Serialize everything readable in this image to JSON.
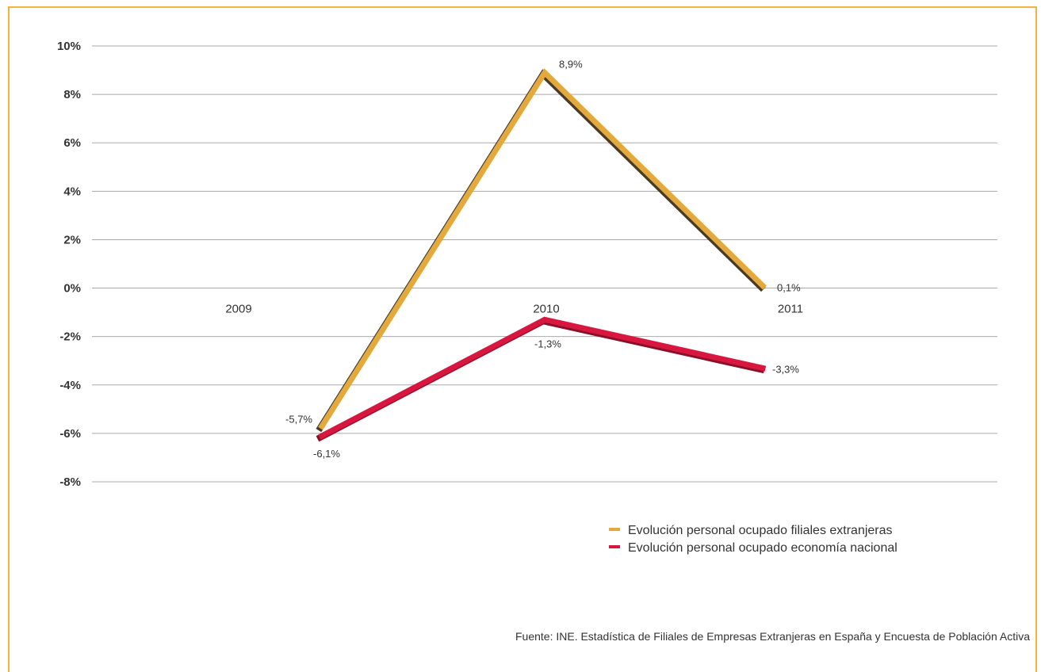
{
  "chart_data": {
    "type": "line",
    "categories": [
      "2009",
      "2010",
      "2011"
    ],
    "ylim": [
      -8,
      10
    ],
    "yticks": [
      10,
      8,
      6,
      4,
      2,
      0,
      -2,
      -4,
      -6,
      -8
    ],
    "ytick_labels": [
      "10%",
      "8%",
      "6%",
      "4%",
      "2%",
      "0%",
      "-2%",
      "-4%",
      "-6%",
      "-8%"
    ],
    "grid": true,
    "legend_position": "bottom-right",
    "series": [
      {
        "name": "Evolución personal ocupado filiales extranjeras",
        "color": "#e3a93c",
        "values": [
          -5.7,
          8.9,
          0.1
        ],
        "labels": [
          "-5,7%",
          "8,9%",
          "0,1%"
        ]
      },
      {
        "name": "Evolución personal ocupado economía nacional",
        "color": "#d7173f",
        "values": [
          -6.1,
          -1.3,
          -3.3
        ],
        "labels": [
          "-6,1%",
          "-1,3%",
          "-3,3%"
        ]
      }
    ]
  },
  "source": "Fuente: INE. Estadística de Filiales de Empresas Extranjeras en España y Encuesta de Población Activa"
}
